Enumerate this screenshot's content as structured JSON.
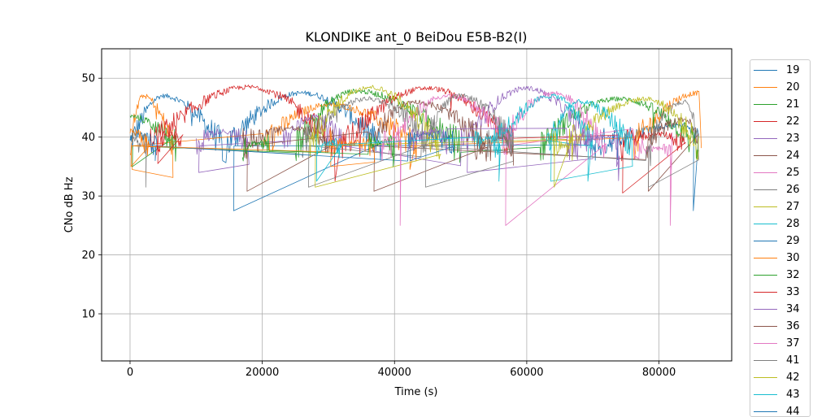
{
  "chart_data": {
    "type": "line",
    "title": "KLONDIKE ant_0 BeiDou E5B-B2(I)",
    "xlabel": "Time (s)",
    "ylabel": "CNo dB Hz",
    "xlim": [
      -4300,
      91000
    ],
    "ylim": [
      2,
      55
    ],
    "xticks": [
      0,
      20000,
      40000,
      60000,
      80000
    ],
    "xtick_labels": [
      "0",
      "20000",
      "40000",
      "60000",
      "80000"
    ],
    "yticks": [
      10,
      20,
      30,
      40,
      50
    ],
    "ytick_labels": [
      "10",
      "20",
      "30",
      "40",
      "50"
    ],
    "grid": true,
    "legend_position": "outside-right",
    "series": [
      {
        "name": "19",
        "color": "#1f77b4",
        "passes": [
          [
            0,
            5000,
            14000,
            47.0
          ],
          [
            14500,
            26000,
            38000,
            47.5
          ],
          [
            70000,
            84000,
            86000,
            42.0
          ]
        ],
        "min_spike": 27.5
      },
      {
        "name": "20",
        "color": "#ff7f0e",
        "passes": [
          [
            0,
            2000,
            6500,
            47.0
          ],
          [
            20000,
            30000,
            43500,
            45.5
          ],
          [
            76000,
            86000,
            86400,
            47.5
          ]
        ],
        "min_spike": 34.5
      },
      {
        "name": "21",
        "color": "#2ca02c",
        "passes": [
          [
            0,
            0,
            7000,
            43.5
          ],
          [
            25000,
            34000,
            50000,
            47.8
          ],
          [
            62000,
            74000,
            86000,
            46.5
          ]
        ],
        "min_spike": 35.0
      },
      {
        "name": "22",
        "color": "#d62728",
        "passes": [
          [
            3000,
            18000,
            31000,
            48.5
          ],
          [
            32000,
            45000,
            58000,
            48.3
          ],
          [
            74000,
            80000,
            84000,
            40.5
          ]
        ],
        "min_spike": 30.5
      },
      {
        "name": "23",
        "color": "#9467bd",
        "passes": [
          [
            10000,
            14000,
            18000,
            41.0
          ],
          [
            23000,
            28000,
            32000,
            43.5
          ],
          [
            50000,
            60000,
            70000,
            48.3
          ]
        ],
        "min_spike": 34.0
      },
      {
        "name": "24",
        "color": "#8c564b",
        "passes": [
          [
            17000,
            24000,
            31000,
            41.5
          ],
          [
            36000,
            43000,
            54000,
            46.0
          ],
          [
            78000,
            84000,
            86000,
            43.0
          ]
        ],
        "min_spike": 30.8
      },
      {
        "name": "25",
        "color": "#e377c2",
        "passes": [
          [
            39000,
            48000,
            58000,
            47.0
          ],
          [
            56000,
            64000,
            72000,
            47.5
          ],
          [
            76000,
            80000,
            82000,
            38.0
          ]
        ],
        "min_spike": 25.0
      },
      {
        "name": "26",
        "color": "#7f7f7f",
        "passes": [
          [
            0,
            0,
            2500,
            40.0
          ],
          [
            26000,
            36000,
            46000,
            46.5
          ],
          [
            44000,
            50000,
            58000,
            47.0
          ],
          [
            78000,
            84000,
            86000,
            46.0
          ]
        ],
        "min_spike": 31.5
      },
      {
        "name": "27",
        "color": "#bcbd22",
        "passes": [
          [
            27000,
            36000,
            47000,
            48.5
          ],
          [
            66000,
            78000,
            86000,
            46.5
          ]
        ],
        "min_spike": 31.5
      },
      {
        "name": "28",
        "color": "#17becf",
        "passes": [
          [
            55000,
            64000,
            70000,
            47.0
          ],
          [
            63000,
            68000,
            76000,
            46.0
          ]
        ],
        "min_spike": 32.5
      },
      {
        "name": "29",
        "color": "#1f77b4",
        "passes": [
          [
            0,
            1000,
            4000,
            40.5
          ],
          [
            42000,
            44000,
            49000,
            40.5
          ]
        ],
        "min_spike": 36.0
      },
      {
        "name": "30",
        "color": "#ff7f0e",
        "passes": [
          [
            0,
            0,
            3000,
            41.0
          ],
          [
            30000,
            33000,
            37000,
            39.0
          ]
        ],
        "min_spike": 35.0
      },
      {
        "name": "32",
        "color": "#2ca02c",
        "passes": [
          [
            17000,
            19000,
            21000,
            39.0
          ],
          [
            36000,
            38000,
            40000,
            39.0
          ]
        ],
        "min_spike": 35.0
      },
      {
        "name": "33",
        "color": "#d62728",
        "passes": [
          [
            4000,
            6000,
            8000,
            40.5
          ]
        ],
        "min_spike": 35.5
      },
      {
        "name": "34",
        "color": "#9467bd",
        "passes": [
          [
            42000,
            46000,
            48000,
            41.0
          ],
          [
            66000,
            72000,
            74000,
            40.0
          ]
        ],
        "min_spike": 35.0
      },
      {
        "name": "36",
        "color": "#8c564b",
        "passes": [
          [
            52000,
            56000,
            58000,
            40.0
          ]
        ],
        "min_spike": 31.5
      },
      {
        "name": "37",
        "color": "#e377c2",
        "passes": [
          [
            38000,
            40000,
            41000,
            40.0
          ]
        ],
        "min_spike": 25.0
      },
      {
        "name": "41",
        "color": "#7f7f7f",
        "passes": [
          [
            54000,
            56000,
            58000,
            40.0
          ]
        ],
        "min_spike": 33.5
      },
      {
        "name": "42",
        "color": "#bcbd22",
        "passes": [
          [
            64000,
            66000,
            67000,
            38.5
          ]
        ],
        "min_spike": 31.5
      },
      {
        "name": "43",
        "color": "#17becf",
        "passes": [
          [
            28000,
            30000,
            32000,
            39.0
          ],
          [
            52000,
            54000,
            56000,
            40.0
          ]
        ],
        "min_spike": 32.5
      },
      {
        "name": "44",
        "color": "#1f77b4",
        "passes": [],
        "min_spike": null
      }
    ]
  }
}
